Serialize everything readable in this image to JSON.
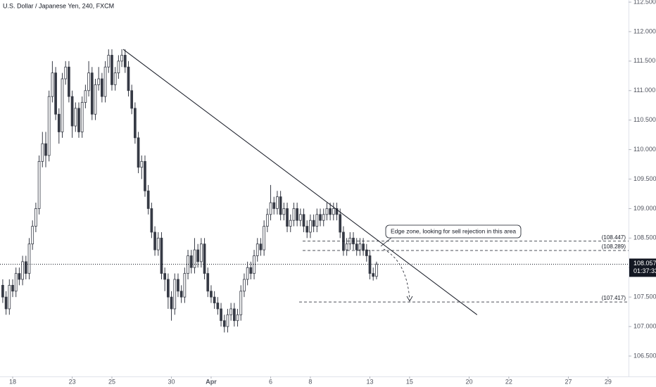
{
  "chart_data": {
    "type": "candlestick",
    "title": "U.S. Dollar / Japanese Yen, 240, FXCM",
    "x": [
      -3,
      -2,
      -1,
      0,
      1,
      2,
      3,
      4,
      5,
      6,
      7,
      8,
      9,
      10,
      11,
      12,
      13,
      14,
      15,
      16,
      17,
      18,
      19,
      20,
      21,
      22,
      23,
      24,
      25,
      26,
      27,
      28,
      29,
      30,
      31,
      32,
      33,
      34,
      35,
      36,
      37,
      38,
      39,
      40,
      41,
      42,
      43,
      44,
      45,
      46,
      47,
      48,
      49,
      50,
      51,
      52,
      53,
      54,
      55,
      56,
      57,
      58,
      59,
      60,
      61,
      62,
      63,
      64,
      65,
      66,
      67,
      68,
      69,
      70,
      71,
      72,
      73,
      74,
      75,
      76,
      77,
      78,
      79,
      80,
      81,
      82,
      83,
      84,
      85,
      86,
      87,
      88,
      89,
      90,
      91,
      92,
      93,
      94,
      95,
      96,
      97,
      98,
      99,
      100,
      101,
      102,
      103,
      104,
      105,
      106,
      107,
      108,
      109,
      110
    ],
    "open": [
      107.7,
      107.5,
      107.3,
      107.7,
      107.6,
      107.9,
      107.8,
      108.1,
      107.9,
      108.4,
      108.7,
      109.0,
      109.8,
      110.1,
      109.9,
      110.9,
      111.3,
      110.6,
      110.3,
      111.2,
      111.4,
      110.9,
      110.4,
      110.7,
      110.3,
      110.8,
      111.0,
      111.3,
      110.6,
      111.1,
      111.2,
      110.9,
      111.4,
      111.6,
      111.1,
      111.3,
      111.5,
      111.6,
      111.4,
      111.0,
      110.7,
      110.2,
      109.7,
      109.8,
      109.3,
      109.0,
      108.6,
      108.3,
      108.5,
      107.9,
      107.8,
      107.5,
      107.3,
      107.8,
      107.6,
      107.5,
      107.9,
      108.2,
      108.0,
      108.3,
      108.1,
      108.4,
      107.9,
      107.6,
      107.5,
      107.4,
      107.3,
      107.1,
      107.0,
      107.2,
      107.3,
      107.1,
      107.2,
      107.6,
      107.8,
      108.0,
      107.9,
      108.2,
      108.4,
      108.3,
      108.7,
      108.9,
      109.1,
      109.0,
      109.2,
      108.9,
      109.0,
      108.7,
      108.8,
      109.0,
      108.8,
      108.9,
      108.7,
      108.6,
      108.8,
      108.7,
      108.9,
      108.8,
      108.9,
      109.0,
      108.9,
      109.0,
      108.9,
      108.6,
      108.3,
      108.4,
      108.5,
      108.4,
      108.3,
      108.4,
      108.3,
      108.2,
      107.9,
      107.85
    ],
    "high": [
      107.8,
      107.6,
      107.8,
      107.8,
      108.0,
      108.0,
      108.2,
      108.2,
      108.5,
      108.8,
      109.1,
      109.9,
      110.3,
      110.3,
      111.0,
      111.5,
      111.4,
      110.7,
      111.3,
      111.5,
      111.5,
      111.0,
      110.8,
      110.8,
      110.9,
      111.1,
      111.5,
      111.4,
      111.2,
      111.4,
      111.3,
      111.5,
      111.7,
      111.7,
      111.4,
      111.6,
      111.7,
      111.7,
      111.5,
      111.1,
      110.8,
      110.3,
      109.9,
      109.9,
      109.4,
      109.1,
      108.7,
      108.6,
      108.6,
      108.0,
      107.9,
      107.6,
      107.9,
      107.9,
      107.7,
      108.0,
      108.3,
      108.3,
      108.5,
      108.4,
      108.5,
      108.5,
      108.0,
      107.7,
      107.6,
      107.5,
      107.4,
      107.2,
      107.3,
      107.4,
      107.4,
      107.3,
      107.7,
      107.9,
      108.1,
      108.1,
      108.3,
      108.5,
      108.5,
      108.8,
      109.0,
      109.4,
      109.2,
      109.3,
      109.3,
      109.1,
      109.1,
      108.9,
      109.1,
      109.1,
      109.0,
      109.0,
      108.8,
      108.9,
      108.9,
      109.0,
      109.0,
      109.0,
      109.1,
      109.1,
      109.1,
      109.1,
      109.0,
      108.7,
      108.5,
      108.6,
      108.6,
      108.5,
      108.5,
      108.5,
      108.4,
      108.3,
      108.0,
      108.1
    ],
    "low": [
      107.4,
      107.2,
      107.2,
      107.5,
      107.5,
      107.7,
      107.7,
      107.8,
      107.8,
      108.3,
      108.6,
      108.9,
      109.7,
      109.7,
      109.8,
      110.8,
      110.5,
      110.1,
      110.2,
      111.1,
      110.8,
      110.2,
      110.3,
      110.2,
      110.2,
      110.7,
      110.9,
      110.5,
      110.5,
      111.0,
      110.8,
      110.8,
      111.3,
      111.0,
      111.0,
      111.2,
      111.4,
      111.3,
      110.9,
      110.6,
      110.1,
      109.6,
      109.5,
      109.2,
      108.9,
      108.5,
      108.2,
      108.2,
      107.8,
      107.6,
      107.3,
      107.1,
      107.2,
      107.5,
      107.4,
      107.4,
      107.8,
      107.9,
      107.9,
      108.0,
      108.0,
      107.8,
      107.5,
      107.4,
      107.3,
      107.2,
      107.0,
      106.9,
      106.9,
      107.1,
      107.0,
      107.0,
      107.1,
      107.5,
      107.7,
      107.8,
      107.8,
      108.1,
      108.2,
      108.2,
      108.6,
      108.8,
      108.9,
      108.9,
      108.8,
      108.8,
      108.6,
      108.6,
      108.7,
      108.7,
      108.7,
      108.6,
      108.5,
      108.5,
      108.6,
      108.6,
      108.7,
      108.7,
      108.8,
      108.8,
      108.8,
      108.8,
      108.5,
      108.2,
      108.2,
      108.3,
      108.3,
      108.2,
      108.2,
      108.2,
      108.1,
      107.8,
      107.78,
      107.8
    ],
    "close": [
      107.5,
      107.3,
      107.7,
      107.6,
      107.9,
      107.8,
      108.1,
      107.9,
      108.4,
      108.7,
      109.0,
      109.8,
      110.1,
      109.9,
      110.9,
      111.3,
      110.6,
      110.3,
      111.2,
      111.4,
      110.9,
      110.4,
      110.7,
      110.3,
      110.8,
      111.0,
      111.3,
      110.6,
      111.1,
      111.2,
      110.9,
      111.4,
      111.6,
      111.1,
      111.3,
      111.5,
      111.6,
      111.4,
      111.0,
      110.7,
      110.2,
      109.7,
      109.8,
      109.3,
      109.0,
      108.6,
      108.3,
      108.5,
      107.9,
      107.8,
      107.5,
      107.3,
      107.8,
      107.6,
      107.5,
      107.9,
      108.2,
      108.0,
      108.3,
      108.1,
      108.4,
      107.9,
      107.6,
      107.5,
      107.4,
      107.3,
      107.1,
      107.0,
      107.2,
      107.3,
      107.1,
      107.2,
      107.6,
      107.8,
      108.0,
      107.9,
      108.2,
      108.4,
      108.3,
      108.7,
      108.9,
      109.1,
      109.0,
      109.2,
      108.9,
      109.0,
      108.7,
      108.8,
      109.0,
      108.8,
      108.9,
      108.7,
      108.6,
      108.8,
      108.7,
      108.9,
      108.8,
      108.9,
      109.0,
      108.9,
      109.0,
      108.9,
      108.6,
      108.3,
      108.4,
      108.5,
      108.4,
      108.3,
      108.4,
      108.3,
      108.2,
      107.9,
      107.85,
      108.06
    ],
    "up_color": "#ffffff",
    "down_color": "#363a45",
    "wick_color": "#363a45",
    "xlim": [
      -3.83,
      186.2
    ],
    "xticks": [
      {
        "value": 0,
        "label": "18"
      },
      {
        "value": 18,
        "label": "23"
      },
      {
        "value": 30,
        "label": "25"
      },
      {
        "value": 48,
        "label": "30"
      },
      {
        "value": 60,
        "label": "Apr"
      },
      {
        "value": 78,
        "label": "6"
      },
      {
        "value": 90,
        "label": "8"
      },
      {
        "value": 108,
        "label": "13"
      },
      {
        "value": 120,
        "label": "15"
      },
      {
        "value": 138,
        "label": "20"
      },
      {
        "value": 150,
        "label": "22"
      },
      {
        "value": 168,
        "label": "27"
      },
      {
        "value": 180,
        "label": "29"
      }
    ],
    "ylim": [
      106.154,
      112.536
    ],
    "yticks": [
      {
        "value": 106.5,
        "label": "106.500"
      },
      {
        "value": 107,
        "label": "107.000"
      },
      {
        "value": 107.5,
        "label": "107.500"
      },
      {
        "value": 108,
        "label": "108.000"
      },
      {
        "value": 108.5,
        "label": "108.500"
      },
      {
        "value": 109,
        "label": "109.000"
      },
      {
        "value": 109.5,
        "label": "109.500"
      },
      {
        "value": 110,
        "label": "110.000"
      },
      {
        "value": 110.5,
        "label": "110.500"
      },
      {
        "value": 111,
        "label": "111.000"
      },
      {
        "value": 111.5,
        "label": "111.500"
      },
      {
        "value": 112,
        "label": "112.000"
      },
      {
        "value": 112.5,
        "label": "112.500"
      }
    ],
    "levels": [
      {
        "value": 108.447,
        "label": "(108.447)"
      },
      {
        "value": 108.289,
        "label": "(108.289)"
      },
      {
        "value": 107.417,
        "label": "(107.417)"
      }
    ],
    "current_price": {
      "value": 108.057,
      "label": "108.057"
    },
    "countdown": "01:37:33",
    "trendline": {
      "x": [
        33.4,
        140.4
      ],
      "y": [
        111.7,
        107.2
      ]
    },
    "annotation": "Edge zone, looking for sell rejection in this area"
  }
}
